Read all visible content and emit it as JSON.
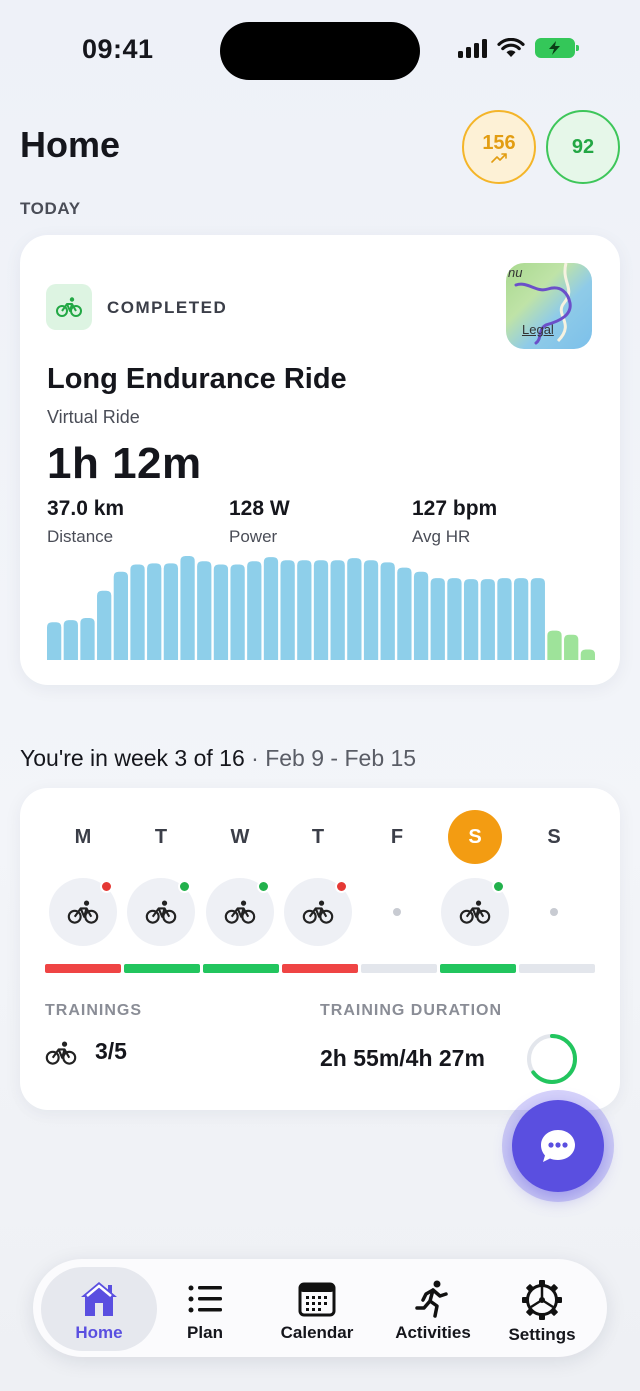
{
  "status_bar": {
    "time": "09:41"
  },
  "header": {
    "title": "Home",
    "fitness_badge": "156",
    "form_badge": "92"
  },
  "today": {
    "section_label": "TODAY",
    "activity": {
      "status": "COMPLETED",
      "map_top_text": "nu",
      "map_legal": "Legal",
      "title": "Long Endurance Ride",
      "subtitle": "Virtual Ride",
      "duration": "1h 12m",
      "metrics": [
        {
          "value": "37.0 km",
          "label": "Distance"
        },
        {
          "value": "128 W",
          "label": "Power"
        },
        {
          "value": "127 bpm",
          "label": "Avg HR"
        }
      ],
      "chart_data": {
        "type": "bar",
        "values": [
          36,
          38,
          40,
          66,
          84,
          91,
          92,
          92,
          99,
          94,
          91,
          91,
          94,
          98,
          95,
          95,
          95,
          95,
          97,
          95,
          93,
          88,
          84,
          78,
          78,
          77,
          77,
          78,
          78,
          78,
          28,
          24,
          10
        ],
        "zone_colors": [
          "#8ecfea",
          "#8ecfea",
          "#8ecfea",
          "#8ecfea",
          "#8ecfea",
          "#8ecfea",
          "#8ecfea",
          "#8ecfea",
          "#8ecfea",
          "#8ecfea",
          "#8ecfea",
          "#8ecfea",
          "#8ecfea",
          "#8ecfea",
          "#8ecfea",
          "#8ecfea",
          "#8ecfea",
          "#8ecfea",
          "#8ecfea",
          "#8ecfea",
          "#8ecfea",
          "#8ecfea",
          "#8ecfea",
          "#8ecfea",
          "#8ecfea",
          "#8ecfea",
          "#8ecfea",
          "#8ecfea",
          "#8ecfea",
          "#8ecfea",
          "#9ee39a",
          "#9ee39a",
          "#9ee39a"
        ],
        "ylim": [
          0,
          100
        ]
      }
    }
  },
  "week": {
    "heading_main": "You're in week 3 of 16",
    "heading_separator": " · ",
    "heading_range": "Feb 9 - Feb 15",
    "days": [
      {
        "letter": "M",
        "has_workout": true,
        "status_color": "#e53935",
        "today": false
      },
      {
        "letter": "T",
        "has_workout": true,
        "status_color": "#22b14c",
        "today": false
      },
      {
        "letter": "W",
        "has_workout": true,
        "status_color": "#22b14c",
        "today": false
      },
      {
        "letter": "T",
        "has_workout": true,
        "status_color": "#e53935",
        "today": false
      },
      {
        "letter": "F",
        "has_workout": false,
        "status_color": "",
        "today": false
      },
      {
        "letter": "S",
        "has_workout": true,
        "status_color": "#22b14c",
        "today": true
      },
      {
        "letter": "S",
        "has_workout": false,
        "status_color": "",
        "today": false
      }
    ],
    "progress_colors": [
      "#ef4444",
      "#22c55e",
      "#22c55e",
      "#ef4444",
      "#e3e6ec",
      "#22c55e",
      "#e3e6ec"
    ],
    "trainings_label": "TRAININGS",
    "trainings_value": "3/5",
    "duration_label": "TRAINING DURATION",
    "duration_value": "2h 55m/4h 27m",
    "duration_progress": 0.65
  },
  "colors": {
    "accent": "#5a4fe0",
    "today": "#f39c12"
  },
  "tabs": [
    {
      "label": "Home",
      "icon": "home-icon",
      "active": true
    },
    {
      "label": "Plan",
      "icon": "list-icon",
      "active": false
    },
    {
      "label": "Calendar",
      "icon": "calendar-icon",
      "active": false
    },
    {
      "label": "Activities",
      "icon": "running-icon",
      "active": false
    },
    {
      "label": "Settings",
      "icon": "gear-icon",
      "active": false
    }
  ]
}
